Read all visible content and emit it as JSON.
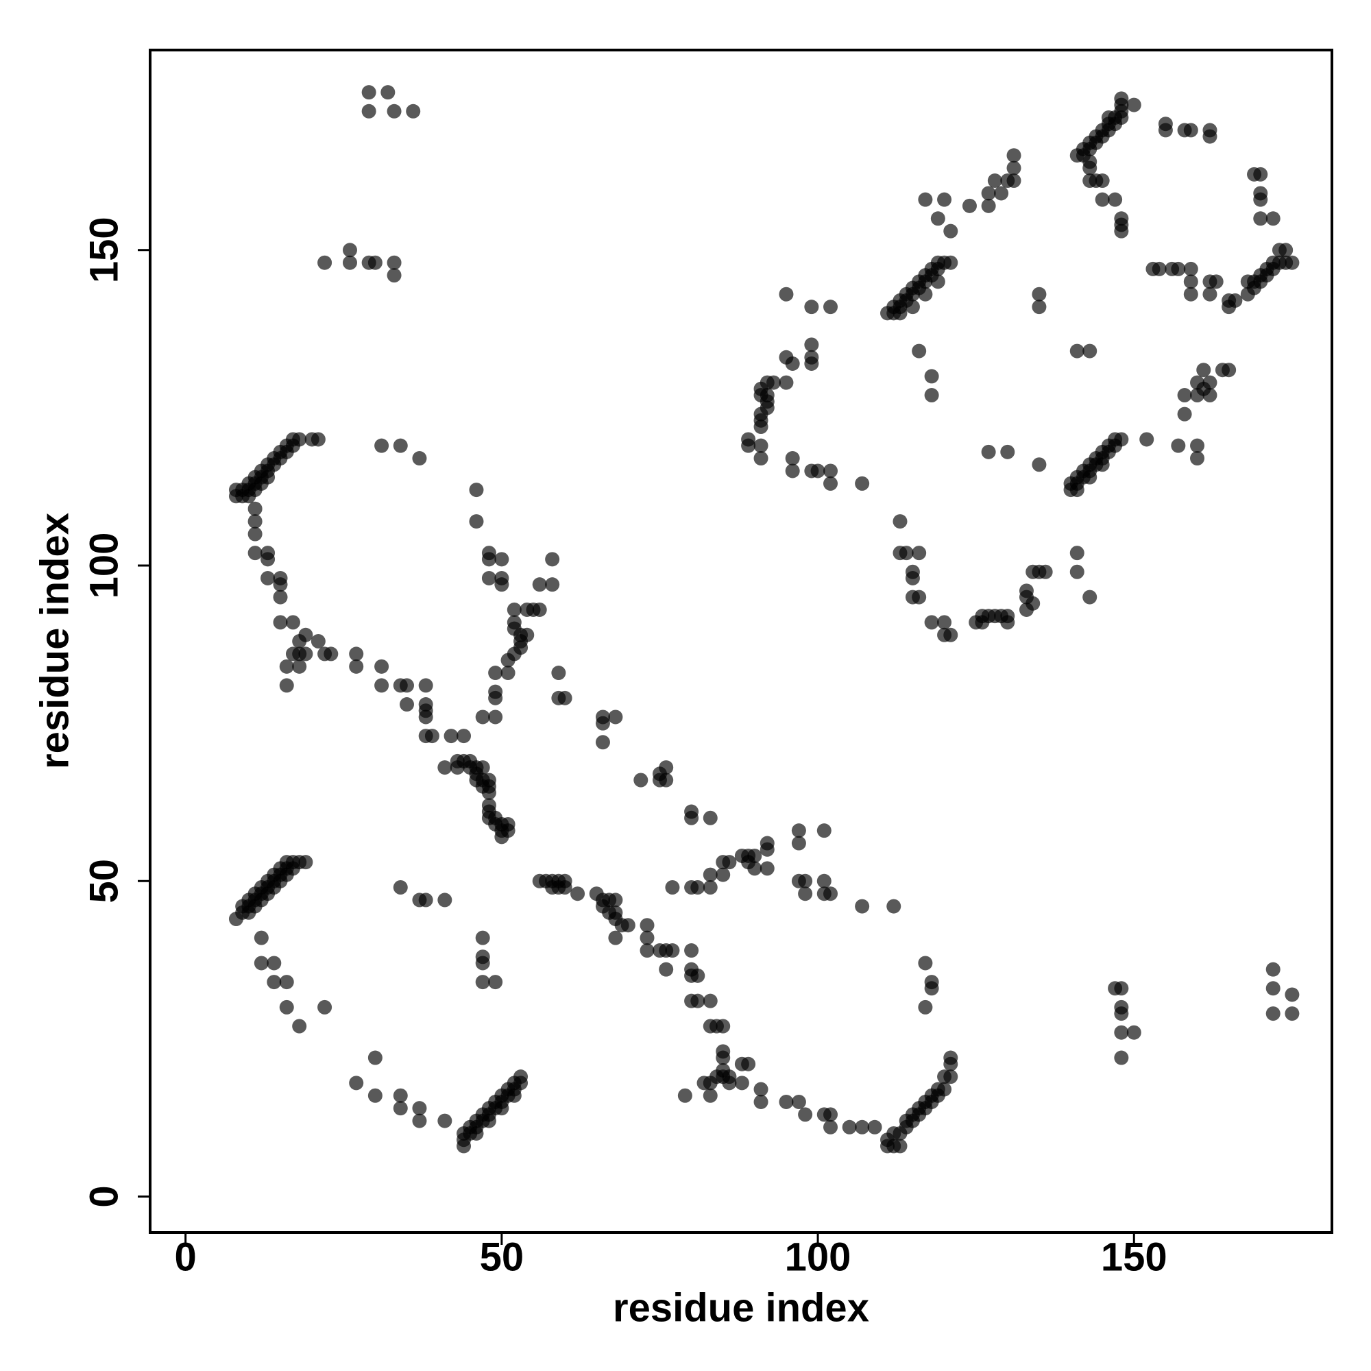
{
  "chart_data": {
    "type": "scatter",
    "x_label": "residue index",
    "y_label": "residue index",
    "color": "#000000",
    "alpha": 0.65,
    "xlim": [
      -5.6,
      181.3
    ],
    "ylim": [
      -5.7,
      181.7
    ],
    "xticks": [
      0,
      50,
      100,
      150
    ],
    "yticks": [
      0,
      50,
      100,
      150
    ],
    "x": [
      29,
      32,
      29,
      33,
      36,
      22,
      26,
      26,
      29,
      30,
      33,
      33,
      8,
      8,
      9,
      9,
      10,
      10,
      11,
      11,
      12,
      12,
      13,
      13,
      14,
      14,
      15,
      15,
      16,
      16,
      17,
      17,
      18,
      20,
      21,
      10,
      11,
      12,
      13,
      31,
      34,
      37,
      11,
      11,
      11,
      11,
      13,
      13,
      13,
      15,
      15,
      15,
      15,
      17,
      19,
      18,
      21,
      17,
      18,
      19,
      18,
      16,
      16,
      22,
      23,
      27,
      27,
      31,
      31,
      34,
      35,
      35,
      38,
      38,
      38,
      38,
      38,
      39,
      42,
      44,
      41,
      43,
      43,
      44,
      45,
      45,
      46,
      47,
      46,
      46,
      47,
      48,
      48,
      47,
      48,
      48,
      48,
      48,
      49,
      49,
      50,
      51,
      50,
      50,
      51,
      46,
      46,
      48,
      48,
      50,
      48,
      50,
      50,
      54,
      52,
      52,
      52,
      53,
      54,
      53,
      53,
      52,
      51,
      51,
      49,
      49,
      49,
      47,
      49,
      55,
      56,
      56,
      58,
      58,
      59,
      60,
      59,
      66,
      68,
      66,
      66,
      72,
      75,
      76,
      75,
      76,
      80,
      80,
      83,
      8,
      9,
      9,
      10,
      10,
      11,
      11,
      12,
      12,
      13,
      13,
      14,
      14,
      15,
      15,
      16,
      16,
      17,
      18,
      19,
      10,
      11,
      12,
      13,
      14,
      15,
      16,
      17,
      12,
      12,
      14,
      14,
      16,
      16,
      18,
      22,
      34,
      37,
      38,
      41,
      47,
      47,
      47,
      47,
      49,
      27,
      30,
      30,
      34,
      34,
      37,
      37,
      41,
      44,
      44,
      45,
      45,
      46,
      46,
      47,
      47,
      48,
      48,
      49,
      49,
      50,
      50,
      51,
      51,
      52,
      52,
      53,
      53,
      44,
      46,
      48,
      50,
      52,
      56,
      57,
      58,
      59,
      58,
      59,
      60,
      60,
      62,
      65,
      66,
      67,
      68,
      66,
      67,
      68,
      68,
      69,
      70,
      68,
      73,
      73,
      73,
      75,
      76,
      76,
      77,
      80,
      80,
      80,
      81,
      80,
      81,
      83,
      83,
      84,
      85,
      85,
      85,
      85,
      84,
      85,
      86,
      88,
      89,
      88,
      86,
      83,
      82,
      79,
      83,
      91,
      91,
      95,
      97,
      98,
      101,
      102,
      102,
      105,
      107,
      109,
      111,
      112,
      113,
      111,
      112,
      113,
      114,
      114,
      115,
      115,
      116,
      116,
      117,
      117,
      118,
      118,
      119,
      119,
      120,
      120,
      121,
      121,
      121,
      117,
      118,
      118,
      117,
      77,
      80,
      81,
      83,
      83,
      85,
      85,
      86,
      88,
      89,
      90,
      89,
      90,
      92,
      92,
      92,
      97,
      97,
      97,
      98,
      98,
      101,
      101,
      102,
      101,
      107,
      112,
      147,
      148,
      148,
      148,
      148,
      148,
      150,
      172,
      172,
      172,
      175,
      175,
      111,
      112,
      112,
      113,
      113,
      114,
      114,
      115,
      115,
      116,
      116,
      117,
      117,
      118,
      118,
      119,
      119,
      120,
      121,
      113,
      115,
      117,
      119,
      117,
      120,
      119,
      121,
      124,
      127,
      127,
      129,
      130,
      131,
      131,
      131,
      128,
      135,
      135,
      116,
      118,
      118,
      141,
      143,
      127,
      130,
      135,
      140,
      140,
      141,
      141,
      142,
      142,
      143,
      143,
      144,
      144,
      145,
      145,
      146,
      146,
      147,
      147,
      148,
      141,
      143,
      145,
      152,
      157,
      160,
      160,
      158,
      158,
      160,
      160,
      161,
      161,
      162,
      164,
      165,
      162,
      141,
      141,
      143,
      134,
      135,
      136,
      133,
      133,
      134,
      133,
      129,
      130,
      130,
      126,
      125,
      126,
      127,
      128,
      120,
      121,
      120,
      118,
      116,
      115,
      115,
      115,
      116,
      114,
      113,
      113,
      89,
      89,
      91,
      91,
      96,
      96,
      99,
      100,
      102,
      102,
      107,
      91,
      91,
      91,
      92,
      92,
      92,
      91,
      91,
      92,
      93,
      95,
      95,
      96,
      99,
      99,
      99,
      95,
      99,
      102,
      141,
      142,
      142,
      143,
      143,
      144,
      144,
      145,
      145,
      146,
      146,
      147,
      147,
      148,
      148,
      148,
      148,
      150,
      143,
      143,
      144,
      145,
      145,
      147,
      148,
      148,
      148,
      143,
      146,
      153,
      154,
      156,
      157,
      159,
      159,
      162,
      163,
      162,
      159,
      165,
      166,
      165,
      168,
      169,
      169,
      170,
      170,
      171,
      171,
      172,
      172,
      173,
      173,
      174,
      174,
      175,
      168,
      155,
      155,
      158,
      159,
      162,
      162,
      169,
      170,
      170,
      170,
      172,
      170
    ],
    "values": [
      175,
      175,
      172,
      172,
      172,
      148,
      150,
      148,
      148,
      148,
      148,
      146,
      111,
      112,
      112,
      111,
      113,
      112,
      113,
      114,
      114,
      115,
      115,
      116,
      117,
      116,
      117,
      118,
      118,
      119,
      119,
      120,
      120,
      120,
      120,
      111,
      112,
      113,
      114,
      119,
      119,
      117,
      109,
      107,
      105,
      102,
      102,
      101,
      98,
      98,
      97,
      95,
      91,
      91,
      89,
      88,
      88,
      86,
      86,
      86,
      84,
      84,
      81,
      86,
      86,
      86,
      84,
      84,
      81,
      81,
      81,
      78,
      78,
      81,
      77,
      76,
      73,
      73,
      73,
      73,
      68,
      68,
      69,
      69,
      69,
      68,
      68,
      68,
      67,
      66,
      66,
      66,
      65,
      65,
      64,
      62,
      61,
      60,
      60,
      59,
      59,
      59,
      58,
      57,
      58,
      112,
      107,
      102,
      101,
      101,
      98,
      98,
      97,
      93,
      93,
      91,
      90,
      89,
      89,
      88,
      87,
      86,
      85,
      83,
      83,
      80,
      79,
      76,
      76,
      93,
      93,
      97,
      97,
      101,
      83,
      79,
      79,
      76,
      76,
      75,
      72,
      66,
      66,
      66,
      67,
      68,
      60,
      61,
      60,
      44,
      45,
      46,
      46,
      47,
      47,
      48,
      48,
      49,
      49,
      50,
      50,
      51,
      51,
      52,
      52,
      53,
      53,
      53,
      53,
      45,
      46,
      47,
      48,
      49,
      50,
      51,
      52,
      41,
      37,
      37,
      34,
      34,
      30,
      27,
      30,
      49,
      47,
      47,
      47,
      41,
      38,
      37,
      34,
      34,
      18,
      22,
      16,
      16,
      14,
      14,
      12,
      12,
      10,
      9,
      10,
      11,
      11,
      12,
      12,
      13,
      13,
      14,
      14,
      15,
      15,
      16,
      16,
      17,
      17,
      18,
      18,
      19,
      8,
      10,
      12,
      14,
      16,
      50,
      50,
      50,
      50,
      49,
      49,
      49,
      50,
      48,
      48,
      47,
      47,
      47,
      46,
      45,
      45,
      44,
      43,
      43,
      41,
      43,
      41,
      39,
      39,
      39,
      36,
      39,
      39,
      36,
      35,
      35,
      31,
      31,
      31,
      27,
      27,
      27,
      23,
      22,
      20,
      19,
      19,
      19,
      21,
      21,
      18,
      18,
      18,
      18,
      16,
      16,
      17,
      15,
      15,
      15,
      13,
      13,
      13,
      11,
      11,
      11,
      11,
      8,
      8,
      8,
      9,
      10,
      10,
      11,
      12,
      12,
      13,
      13,
      14,
      14,
      15,
      15,
      16,
      16,
      17,
      17,
      19,
      19,
      21,
      22,
      30,
      33,
      34,
      37,
      49,
      49,
      49,
      51,
      49,
      51,
      53,
      53,
      54,
      54,
      54,
      53,
      52,
      52,
      55,
      56,
      58,
      56,
      50,
      50,
      48,
      58,
      50,
      48,
      48,
      46,
      46,
      33,
      33,
      30,
      29,
      26,
      22,
      26,
      36,
      33,
      29,
      32,
      29,
      140,
      140,
      141,
      141,
      142,
      142,
      143,
      143,
      144,
      144,
      145,
      145,
      146,
      146,
      147,
      147,
      148,
      148,
      148,
      140,
      141,
      143,
      145,
      158,
      158,
      155,
      153,
      157,
      157,
      159,
      159,
      161,
      161,
      163,
      165,
      161,
      143,
      141,
      134,
      130,
      127,
      134,
      134,
      118,
      118,
      116,
      112,
      113,
      113,
      114,
      114,
      115,
      115,
      116,
      116,
      117,
      117,
      118,
      118,
      119,
      119,
      120,
      120,
      112,
      114,
      116,
      120,
      119,
      119,
      117,
      124,
      127,
      127,
      129,
      128,
      131,
      129,
      131,
      131,
      127,
      102,
      99,
      95,
      99,
      99,
      99,
      96,
      95,
      94,
      93,
      92,
      92,
      91,
      92,
      91,
      91,
      92,
      92,
      89,
      89,
      91,
      91,
      95,
      95,
      98,
      99,
      102,
      102,
      102,
      107,
      120,
      119,
      119,
      117,
      117,
      115,
      115,
      115,
      113,
      115,
      113,
      122,
      123,
      124,
      125,
      126,
      127,
      127,
      128,
      129,
      129,
      129,
      133,
      132,
      133,
      132,
      135,
      143,
      141,
      141,
      165,
      165,
      166,
      166,
      167,
      167,
      168,
      168,
      169,
      169,
      170,
      170,
      171,
      171,
      172,
      173,
      174,
      173,
      163,
      161,
      161,
      161,
      158,
      158,
      155,
      154,
      153,
      164,
      171,
      147,
      147,
      147,
      147,
      147,
      145,
      145,
      145,
      143,
      143,
      142,
      142,
      141,
      143,
      144,
      145,
      145,
      146,
      146,
      147,
      147,
      148,
      148,
      150,
      150,
      148,
      148,
      145,
      170,
      169,
      169,
      169,
      169,
      168,
      162,
      162,
      159,
      158,
      155,
      155
    ]
  }
}
